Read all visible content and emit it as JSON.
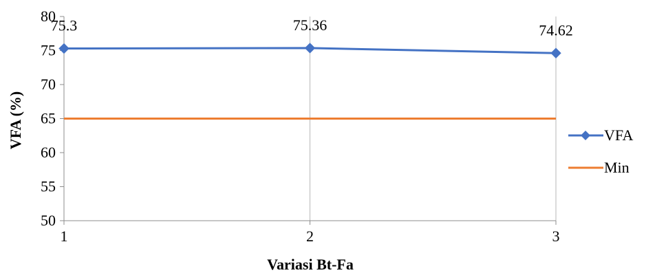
{
  "chart_data": {
    "type": "line",
    "title": "",
    "xlabel": "Variasi Bt-Fa",
    "ylabel": "VFA (%)",
    "x": [
      1,
      2,
      3
    ],
    "xlim": [
      1,
      3
    ],
    "ylim": [
      50,
      80
    ],
    "yticks": [
      50,
      55,
      60,
      65,
      70,
      75,
      80
    ],
    "xticks": [
      1,
      2,
      3
    ],
    "grid": {
      "vertical": true,
      "horizontal": false
    },
    "legend_position": "right",
    "series": [
      {
        "name": "VFA",
        "values": [
          75.3,
          75.36,
          74.62
        ],
        "data_labels": [
          "75.3",
          "75.36",
          "74.62"
        ],
        "color": "#4472C4",
        "marker": "diamond"
      },
      {
        "name": "Min",
        "values": [
          65,
          65,
          65
        ],
        "color": "#ED7D31",
        "marker": "none"
      }
    ]
  }
}
